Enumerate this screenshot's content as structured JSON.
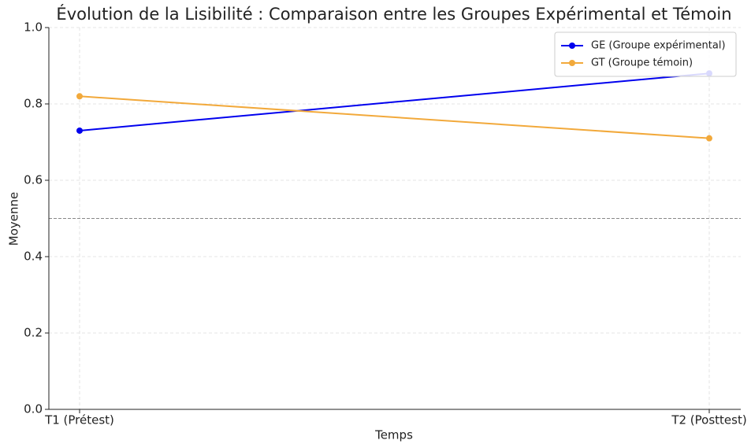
{
  "chart_data": {
    "type": "line",
    "title": "Évolution de la Lisibilité : Comparaison entre les Groupes Expérimental et Témoin",
    "xlabel": "Temps",
    "ylabel": "Moyenne",
    "categories": [
      "T1 (Prétest)",
      "T2 (Posttest)"
    ],
    "series": [
      {
        "name": "GE (Groupe expérimental)",
        "color": "#0000ee",
        "values": [
          0.73,
          0.88
        ]
      },
      {
        "name": "GT (Groupe témoin)",
        "color": "#f2a93b",
        "values": [
          0.82,
          0.71
        ]
      }
    ],
    "reference_line": 0.5,
    "ylim": [
      0,
      1
    ],
    "yticks": [
      {
        "value": 0,
        "label": "0.0"
      },
      0.2,
      0.4,
      0.6,
      0.8,
      {
        "value": 1,
        "label": "1.0"
      }
    ],
    "grid": true,
    "legend": "upper right"
  }
}
